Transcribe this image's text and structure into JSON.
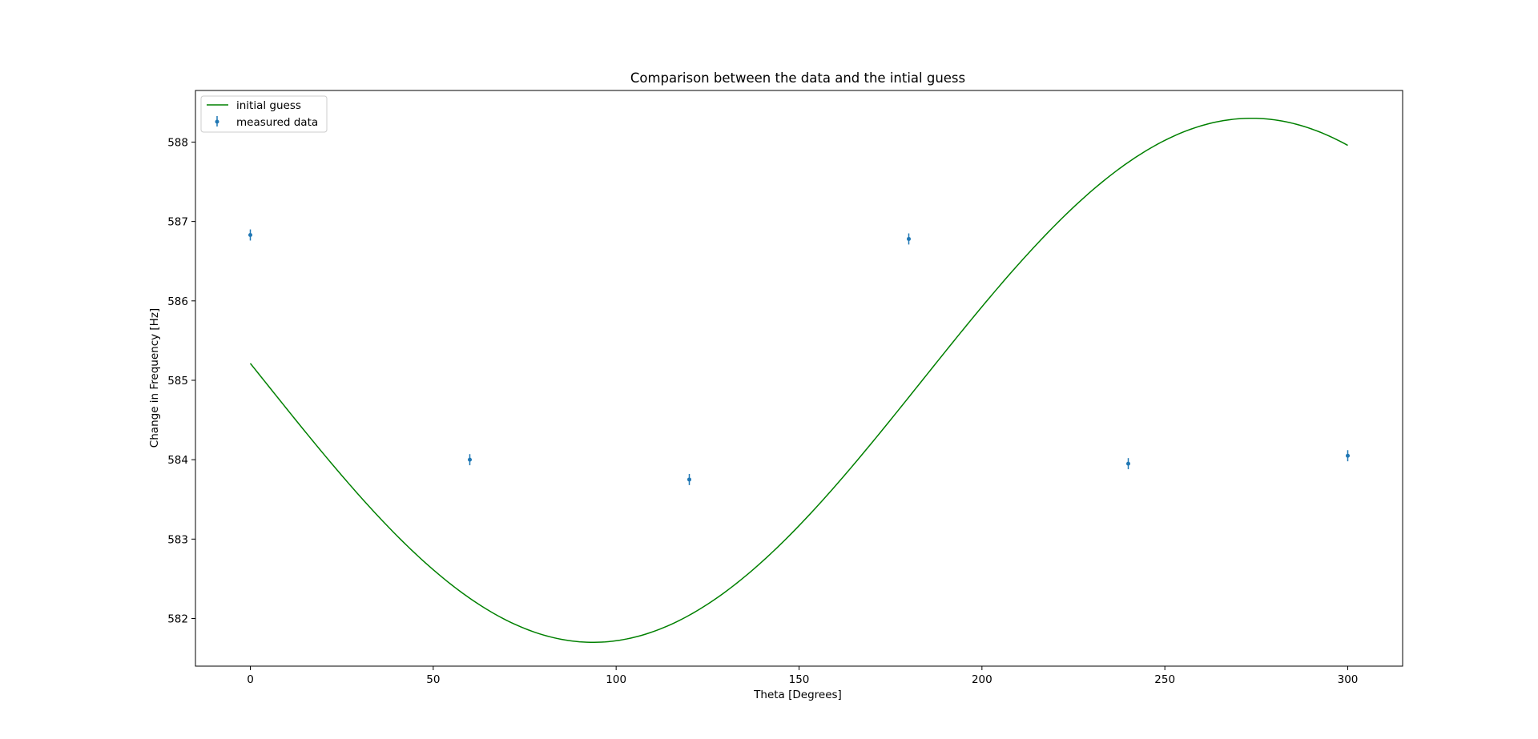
{
  "chart_data": {
    "type": "line",
    "title": "Comparison between the data and the intial guess",
    "xlabel": "Theta [Degrees]",
    "ylabel": "Change in Frequency [Hz]",
    "xlim": [
      -15,
      315
    ],
    "ylim": [
      581.4,
      588.65
    ],
    "xticks": [
      0,
      50,
      100,
      150,
      200,
      250,
      300
    ],
    "yticks": [
      582,
      583,
      584,
      585,
      586,
      587,
      588
    ],
    "grid": false,
    "legend_position": "upper-left",
    "series": [
      {
        "name": "initial guess",
        "kind": "line",
        "color": "#008000",
        "function": {
          "form": "sine",
          "offset": 585.0,
          "amplitude": 3.3,
          "phase_deg": -3.7,
          "x_range": [
            0,
            300
          ]
        }
      },
      {
        "name": "measured data",
        "kind": "errorbar",
        "color": "#1f77b4",
        "x": [
          0,
          60,
          120,
          180,
          240,
          300
        ],
        "y": [
          586.83,
          584.0,
          583.75,
          586.78,
          583.95,
          584.05
        ],
        "yerr": [
          0.07,
          0.07,
          0.07,
          0.07,
          0.07,
          0.07
        ]
      }
    ]
  }
}
